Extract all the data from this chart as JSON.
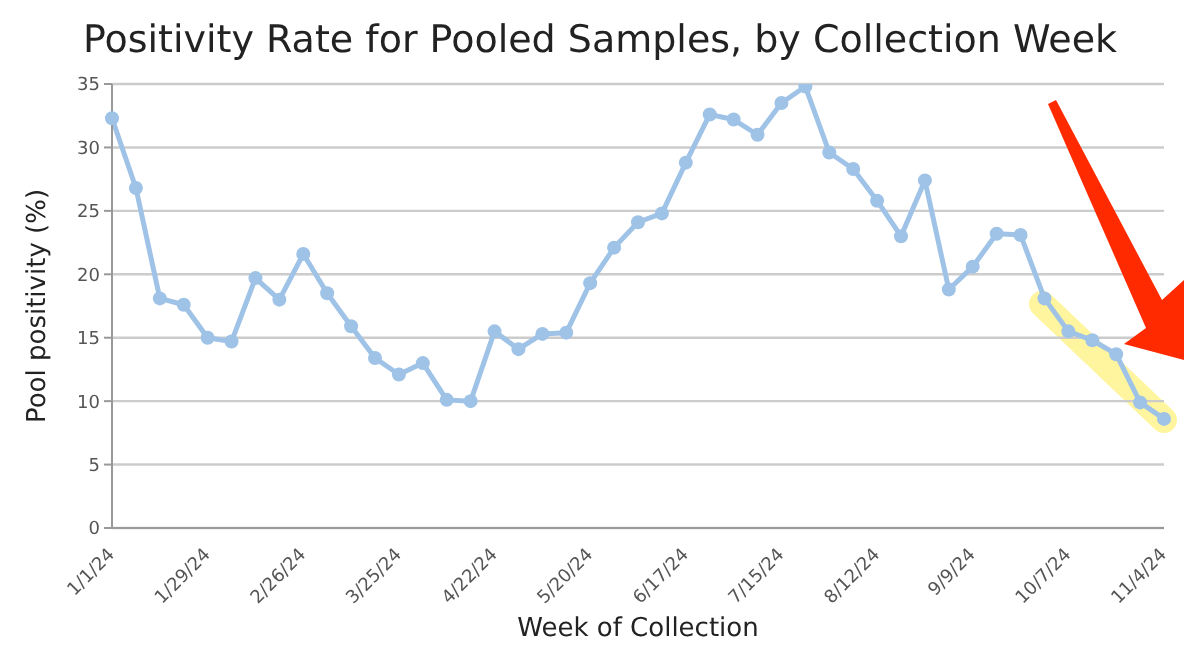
{
  "chart_data": {
    "type": "line",
    "title": "Positivity Rate for Pooled Samples, by Collection Week",
    "xlabel": "Week of Collection",
    "ylabel": "Pool positivity (%)",
    "categories": [
      "1/1/24",
      null,
      null,
      null,
      "1/29/24",
      null,
      null,
      null,
      "2/26/24",
      null,
      null,
      null,
      "3/25/24",
      null,
      null,
      null,
      "4/22/24",
      null,
      null,
      null,
      "5/20/24",
      null,
      null,
      null,
      "6/17/24",
      null,
      null,
      null,
      "7/15/24",
      null,
      null,
      null,
      "8/12/24",
      null,
      null,
      null,
      "9/9/24",
      null,
      null,
      null,
      "10/7/24",
      null,
      null,
      null,
      "11/4/24"
    ],
    "series": [
      {
        "color": "#9fc2e7",
        "values": [
          32.3,
          26.8,
          18.1,
          17.6,
          15.0,
          14.7,
          19.7,
          18.0,
          21.6,
          18.5,
          15.9,
          13.4,
          12.1,
          13.0,
          10.1,
          10.0,
          15.5,
          14.1,
          15.3,
          15.4,
          19.3,
          22.1,
          24.1,
          24.8,
          28.8,
          32.6,
          32.2,
          31.0,
          33.5,
          34.8,
          29.6,
          28.3,
          25.8,
          23.0,
          27.4,
          18.8,
          20.6,
          23.2,
          23.1,
          18.1,
          15.5,
          14.8,
          13.7,
          9.9,
          8.6
        ]
      }
    ],
    "ylim": [
      0,
      35
    ],
    "yticks": [
      0,
      5,
      10,
      15,
      20,
      25,
      30,
      35
    ],
    "grid": "y",
    "marker": "circle",
    "line_style": "solid",
    "legend": false
  }
}
